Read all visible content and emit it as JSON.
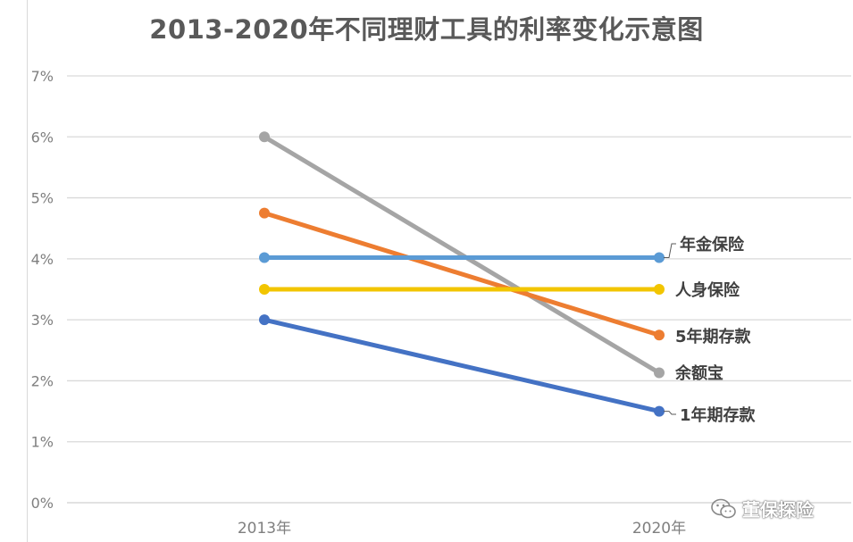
{
  "chart_data": {
    "type": "line",
    "title": "2013-2020年不同理财工具的利率变化示意图",
    "categories": [
      "2013年",
      "2020年"
    ],
    "ylim": [
      0,
      7
    ],
    "yticks": [
      "0%",
      "1%",
      "2%",
      "3%",
      "4%",
      "5%",
      "6%",
      "7%"
    ],
    "ytick_values": [
      0,
      1,
      2,
      3,
      4,
      5,
      6,
      7
    ],
    "grid": true,
    "legend": "inline labels at right end of each line",
    "series": [
      {
        "name": "年金保险",
        "values": [
          4.02,
          4.02
        ],
        "color": "#5b9bd5"
      },
      {
        "name": "人身保险",
        "values": [
          3.5,
          3.5
        ],
        "color": "#f2c500"
      },
      {
        "name": "5年期存款",
        "values": [
          4.75,
          2.75
        ],
        "color": "#ed7d31"
      },
      {
        "name": "余额宝",
        "values": [
          6.0,
          2.13
        ],
        "color": "#a5a5a5"
      },
      {
        "name": "1年期存款",
        "values": [
          3.0,
          1.5
        ],
        "color": "#4472c4"
      }
    ]
  },
  "watermark": {
    "text": "董保探险",
    "icon": "wechat-icon"
  }
}
